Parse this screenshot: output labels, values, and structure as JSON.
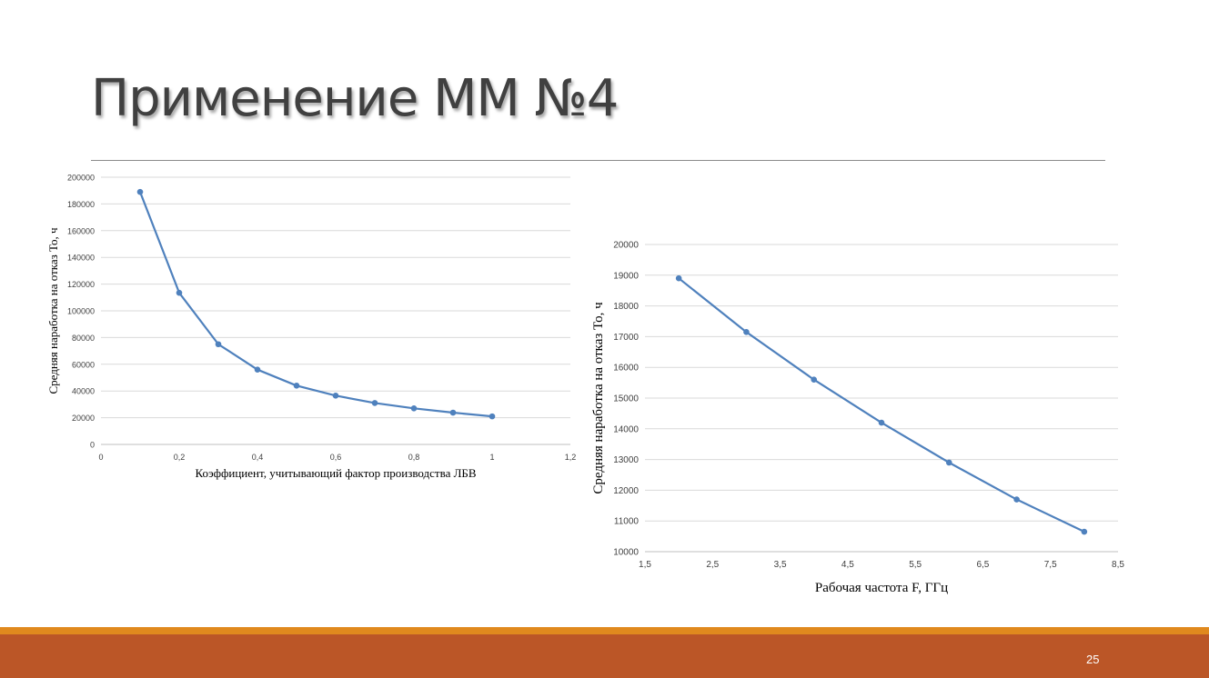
{
  "slide": {
    "title": "Применение ММ №4",
    "page_number": "25"
  },
  "colors": {
    "series": "#4f81bd",
    "grid": "#d9d9d9",
    "axis": "#bfbfbf",
    "footer_top": "#e0891e",
    "footer_main": "#bb5627",
    "title": "#404040"
  },
  "chart_data": [
    {
      "type": "line",
      "title": "",
      "xlabel": "Коэффициент, учитывающий фактор производства ЛБВ",
      "ylabel": "Средняя наработка на отказ То, ч",
      "xlim": [
        0,
        1.2
      ],
      "ylim": [
        0,
        200000
      ],
      "x_ticks": [
        "0",
        "0,2",
        "0,4",
        "0,6",
        "0,8",
        "1",
        "1,2"
      ],
      "y_ticks": [
        "0",
        "20000",
        "40000",
        "60000",
        "80000",
        "100000",
        "120000",
        "140000",
        "160000",
        "180000",
        "200000"
      ],
      "grid": true,
      "legend": "none",
      "series": [
        {
          "x": [
            0.1,
            0.2,
            0.3,
            0.4,
            0.5,
            0.6,
            0.7,
            0.8,
            0.9,
            1.0
          ],
          "y": [
            189000,
            113500,
            75000,
            56000,
            44000,
            36500,
            31000,
            27000,
            23800,
            21000
          ]
        }
      ]
    },
    {
      "type": "line",
      "title": "",
      "xlabel": "Рабочая частота F, ГГц",
      "ylabel": "Средняя наработка на отказ То, ч",
      "xlim": [
        1.5,
        8.5
      ],
      "ylim": [
        10000,
        20000
      ],
      "x_ticks": [
        "1,5",
        "2,5",
        "3,5",
        "4,5",
        "5,5",
        "6,5",
        "7,5",
        "8,5"
      ],
      "y_ticks": [
        "10000",
        "11000",
        "12000",
        "13000",
        "14000",
        "15000",
        "16000",
        "17000",
        "18000",
        "19000",
        "20000"
      ],
      "grid": true,
      "legend": "none",
      "series": [
        {
          "x": [
            2,
            3,
            4,
            5,
            6,
            7,
            8
          ],
          "y": [
            18900,
            17150,
            15600,
            14200,
            12900,
            11700,
            10650
          ]
        }
      ]
    }
  ]
}
